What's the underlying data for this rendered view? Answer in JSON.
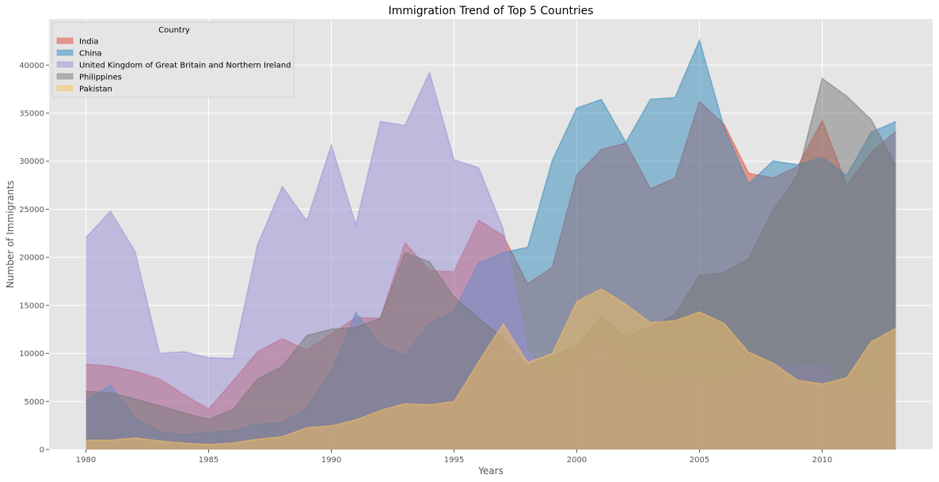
{
  "chart_data": {
    "type": "area",
    "title": "Immigration Trend of Top 5 Countries",
    "xlabel": "Years",
    "ylabel": "Number of Immigrants",
    "xlim": [
      1978.5,
      2014.5
    ],
    "ylim": [
      0,
      44800
    ],
    "xticks": [
      1980,
      1985,
      1990,
      1995,
      2000,
      2005,
      2010
    ],
    "yticks": [
      0,
      5000,
      10000,
      15000,
      20000,
      25000,
      30000,
      35000,
      40000
    ],
    "grid": true,
    "legend": {
      "title": "Country",
      "placement": "top-left"
    },
    "x": [
      1980,
      1981,
      1982,
      1983,
      1984,
      1985,
      1986,
      1987,
      1988,
      1989,
      1990,
      1991,
      1992,
      1993,
      1994,
      1995,
      1996,
      1997,
      1998,
      1999,
      2000,
      2001,
      2002,
      2003,
      2004,
      2005,
      2006,
      2007,
      2008,
      2009,
      2010,
      2011,
      2012,
      2013
    ],
    "series": [
      {
        "name": "India",
        "color": "#E24A33",
        "values": [
          8880,
          8670,
          8147,
          7338,
          5704,
          4211,
          7150,
          10189,
          11522,
          10343,
          12041,
          13734,
          13673,
          21496,
          18620,
          18489,
          23859,
          22268,
          17241,
          18974,
          28572,
          31223,
          31889,
          27155,
          28235,
          36210,
          33848,
          28742,
          28261,
          29456,
          34235,
          27509,
          30933,
          33087
        ]
      },
      {
        "name": "China",
        "color": "#348ABD",
        "values": [
          5123,
          6682,
          3308,
          1863,
          1527,
          1816,
          1960,
          2643,
          2758,
          4323,
          8076,
          14255,
          10846,
          9817,
          13128,
          14398,
          19415,
          20475,
          21049,
          30069,
          35529,
          36434,
          31961,
          36439,
          36619,
          42584,
          33518,
          27642,
          30037,
          29622,
          30391,
          28502,
          33024,
          34129
        ]
      },
      {
        "name": "United Kingdom of Great Britain and Northern Ireland",
        "color": "#988ED5",
        "values": [
          22045,
          24796,
          20620,
          10015,
          10170,
          9564,
          9470,
          21337,
          27359,
          23795,
          31668,
          23380,
          34123,
          33720,
          39231,
          30145,
          29322,
          22965,
          10367,
          7045,
          8840,
          11728,
          8046,
          6797,
          7533,
          7258,
          7140,
          8216,
          8979,
          8876,
          8724,
          6204,
          6195,
          5827
        ]
      },
      {
        "name": "Philippines",
        "color": "#777777",
        "values": [
          6051,
          5921,
          5249,
          4562,
          3801,
          3150,
          4166,
          7360,
          8639,
          11865,
          12509,
          12718,
          13670,
          20479,
          19532,
          15864,
          13692,
          11549,
          8735,
          9734,
          10763,
          13836,
          11707,
          12758,
          14004,
          18139,
          18400,
          19837,
          24887,
          28573,
          38617,
          36765,
          34315,
          29544
        ]
      },
      {
        "name": "Pakistan",
        "color": "#FBC15E",
        "values": [
          978,
          972,
          1201,
          900,
          668,
          514,
          691,
          1072,
          1334,
          2261,
          2470,
          3079,
          4071,
          4777,
          4666,
          4994,
          9125,
          13073,
          9068,
          9979,
          15400,
          16708,
          15110,
          13205,
          13399,
          14314,
          13127,
          10124,
          8994,
          7217,
          6811,
          7468,
          11227,
          12603
        ]
      }
    ]
  }
}
